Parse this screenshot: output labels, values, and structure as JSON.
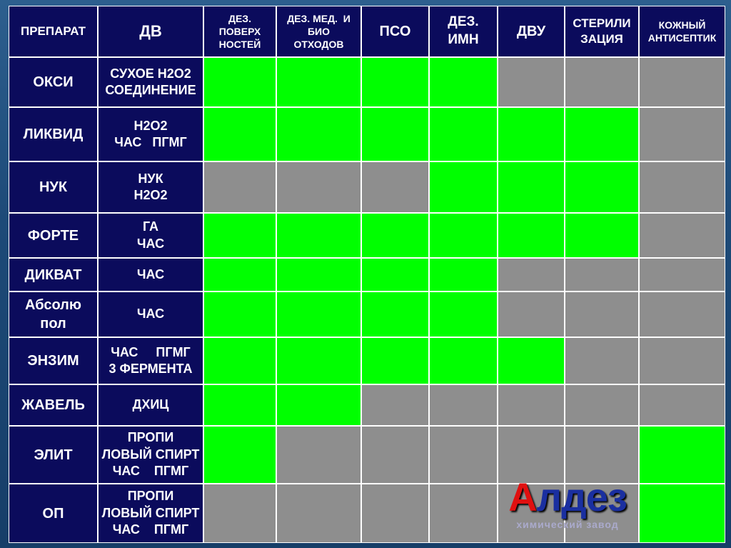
{
  "table": {
    "header": [
      [
        "ПРЕПАРАТ"
      ],
      [
        "ДВ"
      ],
      [
        "ДЕЗ.",
        "ПОВЕРХ",
        "НОСТЕЙ"
      ],
      [
        "ДЕЗ. МЕД.  И",
        "БИО",
        "ОТХОДОВ"
      ],
      [
        "ПСО"
      ],
      [
        "ДЕЗ.",
        "ИМН"
      ],
      [
        "ДВУ"
      ],
      [
        "СТЕРИЛИ",
        "ЗАЦИЯ"
      ],
      [
        "КОЖНЫЙ",
        "АНТИСЕПТИК"
      ]
    ],
    "colors": {
      "applicable": "#00ff00",
      "not_applicable": "#8e8e8e",
      "label_cell": "#0b0b5c"
    },
    "rows": [
      {
        "name": [
          "ОКСИ"
        ],
        "agent": [
          "СУХОЕ Н2О2",
          "СОЕДИНЕНИЕ"
        ],
        "applicable": [
          true,
          true,
          true,
          true,
          false,
          false,
          false
        ]
      },
      {
        "name": [
          "ЛИКВИД"
        ],
        "agent": [
          "Н2О2",
          "ЧАС   ПГМГ"
        ],
        "applicable": [
          true,
          true,
          true,
          true,
          true,
          true,
          false
        ]
      },
      {
        "name": [
          "НУК"
        ],
        "agent": [
          "НУК",
          "Н2О2"
        ],
        "applicable": [
          false,
          false,
          false,
          true,
          true,
          true,
          false
        ]
      },
      {
        "name": [
          "ФОРТЕ"
        ],
        "agent": [
          "ГА",
          "ЧАС"
        ],
        "applicable": [
          true,
          true,
          true,
          true,
          true,
          true,
          false
        ]
      },
      {
        "name": [
          "ДИКВАТ"
        ],
        "agent": [
          "ЧАС"
        ],
        "applicable": [
          true,
          true,
          true,
          true,
          false,
          false,
          false
        ]
      },
      {
        "name": [
          "Абсолю",
          "пол"
        ],
        "agent": [
          "ЧАС"
        ],
        "applicable": [
          true,
          true,
          true,
          true,
          false,
          false,
          false
        ]
      },
      {
        "name": [
          "ЭНЗИМ"
        ],
        "agent": [
          "ЧАС     ПГМГ",
          "3 ФЕРМЕНТА"
        ],
        "applicable": [
          true,
          true,
          true,
          true,
          true,
          false,
          false
        ]
      },
      {
        "name": [
          "ЖАВЕЛЬ"
        ],
        "agent": [
          "ДХИЦ"
        ],
        "applicable": [
          true,
          true,
          false,
          false,
          false,
          false,
          false
        ]
      },
      {
        "name": [
          "ЭЛИТ"
        ],
        "agent": [
          "ПРОПИ",
          "ЛОВЫЙ СПИРТ",
          "ЧАС    ПГМГ"
        ],
        "applicable": [
          true,
          false,
          false,
          false,
          false,
          false,
          true
        ]
      },
      {
        "name": [
          "ОП"
        ],
        "agent": [
          "ПРОПИ",
          "ЛОВЫЙ СПИРТ",
          "ЧАС    ПГМГ"
        ],
        "applicable": [
          false,
          false,
          false,
          false,
          false,
          false,
          true
        ]
      }
    ]
  },
  "logo": {
    "initial": "А",
    "rest": "лдез",
    "subtitle": "химический завод"
  }
}
